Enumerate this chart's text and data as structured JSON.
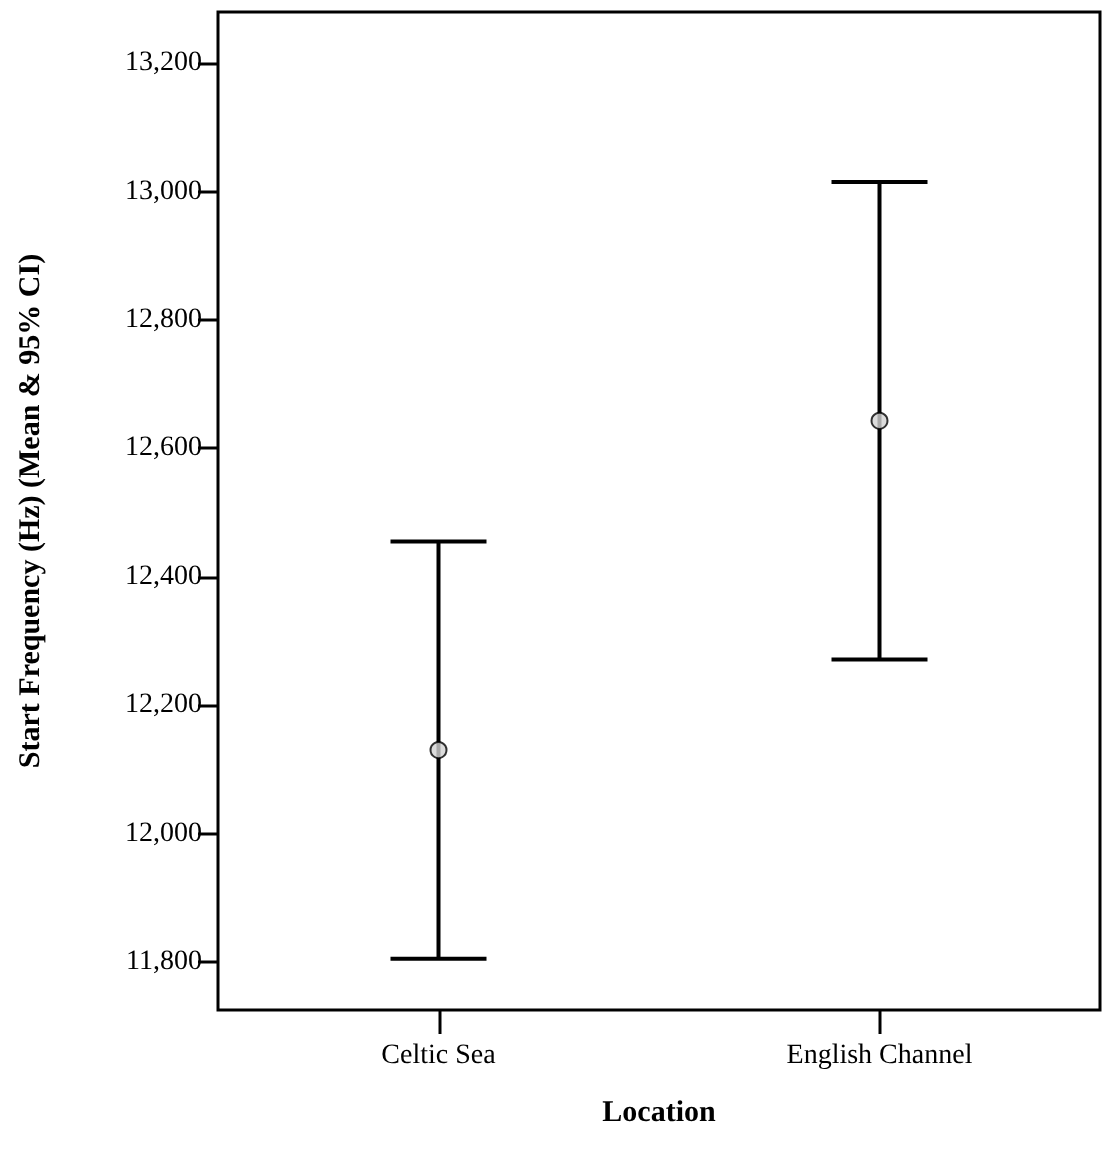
{
  "chart_data": {
    "type": "scatter",
    "xlabel": "Location",
    "ylabel": "Start Frequency (Hz) (Mean & 95% CI)",
    "categories": [
      "Celtic Sea",
      "English Channel"
    ],
    "values": [
      12130,
      12643
    ],
    "errors": [
      325,
      372
    ],
    "color": "#d3d3d3",
    "marker": "circle",
    "ylim": [
      11725,
      13280
    ],
    "yticks": [
      {
        "value": 11800,
        "label": "11,800"
      },
      {
        "value": 12000,
        "label": "12,000"
      },
      {
        "value": 12200,
        "label": "12,200"
      },
      {
        "value": 12400,
        "label": "12,400"
      },
      {
        "value": 12600,
        "label": "12,600"
      },
      {
        "value": 12800,
        "label": "12,800"
      },
      {
        "value": 13000,
        "label": "13,000"
      },
      {
        "value": 13200,
        "label": "13,200"
      }
    ],
    "grid": false
  }
}
